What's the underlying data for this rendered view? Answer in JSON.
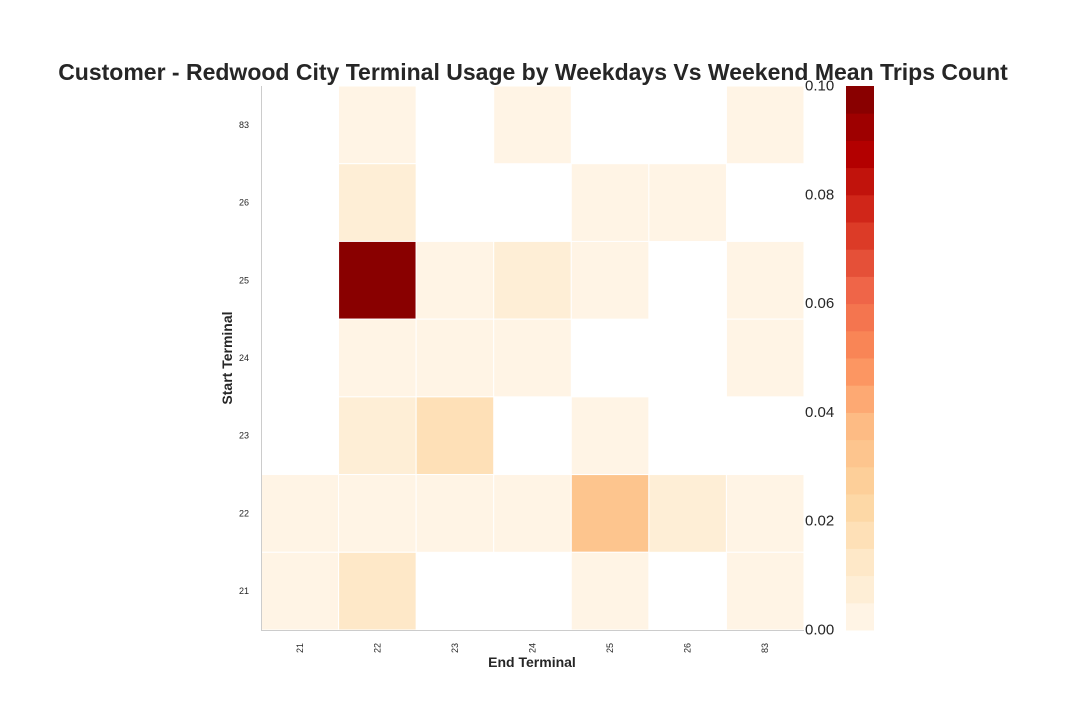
{
  "chart_data": {
    "type": "heatmap",
    "title": "Customer - Redwood City Terminal Usage by Weekdays Vs Weekend Mean Trips Count",
    "xlabel": "End Terminal",
    "ylabel": "Start Terminal",
    "x_categories": [
      "21",
      "22",
      "23",
      "24",
      "25",
      "26",
      "83"
    ],
    "y_categories_top_to_bottom": [
      "83",
      "26",
      "25",
      "24",
      "23",
      "22",
      "21"
    ],
    "values_top_to_bottom": [
      [
        null,
        0.003,
        null,
        0.003,
        null,
        null,
        0.003
      ],
      [
        null,
        0.01,
        null,
        null,
        0.004,
        0.004,
        null
      ],
      [
        null,
        0.1,
        0.004,
        0.01,
        0.004,
        null,
        0.004
      ],
      [
        null,
        0.004,
        0.004,
        0.004,
        null,
        null,
        0.004
      ],
      [
        null,
        0.007,
        0.015,
        null,
        0.004,
        null,
        null
      ],
      [
        0.004,
        0.004,
        0.004,
        0.004,
        0.03,
        0.008,
        0.004
      ],
      [
        0.004,
        0.013,
        null,
        null,
        0.004,
        null,
        0.004
      ]
    ],
    "colorbar": {
      "range": [
        0.0,
        0.1
      ],
      "ticks": [
        "0.00",
        "0.02",
        "0.04",
        "0.06",
        "0.08",
        "0.10"
      ],
      "colormap": "OrRd",
      "n_bins": 20
    },
    "grid": false
  }
}
